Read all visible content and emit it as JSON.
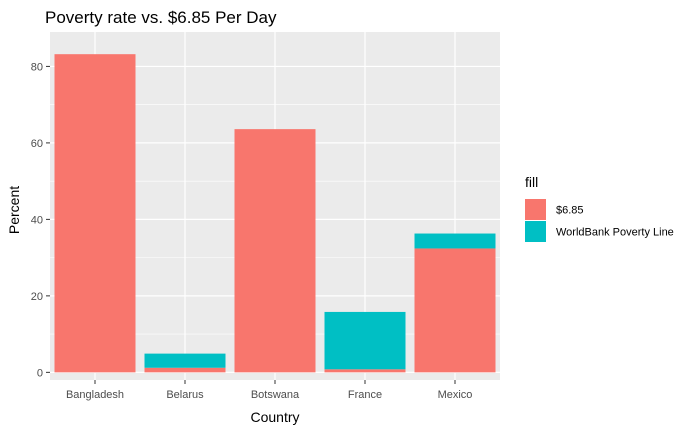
{
  "chart_data": {
    "type": "bar",
    "stacked": true,
    "title": "Poverty rate vs. $6.85 Per Day",
    "xlabel": "Country",
    "ylabel": "Percent",
    "categories": [
      "Bangladesh",
      "Belarus",
      "Botswana",
      "France",
      "Mexico"
    ],
    "series": [
      {
        "name": "$6.85",
        "color": "#F8766D",
        "values": [
          83.2,
          1.2,
          63.6,
          0.8,
          32.4
        ]
      },
      {
        "name": "WorldBank Poverty Line",
        "color": "#00BFC4",
        "values": [
          0,
          3.7,
          0,
          15.0,
          3.9
        ]
      }
    ],
    "ylim": [
      -2,
      89
    ],
    "yticks": [
      0,
      20,
      40,
      60,
      80
    ],
    "grid": true,
    "panel_background": "#EBEBEB",
    "legend": {
      "title": "fill",
      "position": "right"
    }
  }
}
